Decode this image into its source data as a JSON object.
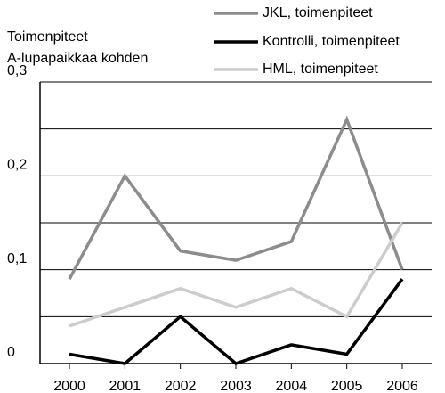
{
  "chart_data": {
    "type": "line",
    "ylabel": [
      "Toimenpiteet",
      "A-lupapaikkaa kohden"
    ],
    "categories": [
      "2000",
      "2001",
      "2002",
      "2003",
      "2004",
      "2005",
      "2006"
    ],
    "series": [
      {
        "name": "JKL, toimenpiteet",
        "color": "#8c8c8c",
        "values": [
          0.09,
          0.2,
          0.12,
          0.11,
          0.13,
          0.26,
          0.1
        ]
      },
      {
        "name": "Kontrolli, toimenpiteet",
        "color": "#000000",
        "values": [
          0.01,
          0,
          0.05,
          0,
          0.02,
          0.01,
          0.09
        ]
      },
      {
        "name": "HML, toimenpiteet",
        "color": "#cccccc",
        "values": [
          0.04,
          0.06,
          0.08,
          0.06,
          0.08,
          0.05,
          0.15
        ]
      }
    ],
    "ylim": [
      0,
      0.3
    ],
    "yticks": [
      0,
      {
        "value": 0.1,
        "label": "0,1"
      },
      {
        "value": 0.2,
        "label": "0,2"
      },
      {
        "value": 0.3,
        "label": "0,3"
      }
    ],
    "minor_yticks": [
      0.05,
      0.15,
      0.25
    ],
    "grid": true,
    "legend": "top-right"
  }
}
